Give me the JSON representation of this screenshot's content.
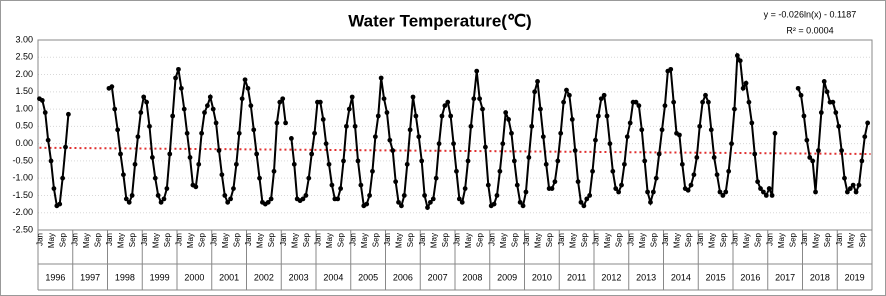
{
  "chart_data": {
    "type": "line",
    "title": "Water Temperature(℃)",
    "annotations": [
      "y = -0.026ln(x) - 0.1187",
      "R² = 0.0004"
    ],
    "categories": [
      "Jan",
      null,
      null,
      null,
      "May",
      null,
      null,
      null,
      "Sep",
      null,
      null,
      null,
      "Jan",
      null,
      null,
      null,
      "May",
      null,
      null,
      null,
      "Sep",
      null,
      null,
      null,
      "Jan",
      null,
      null,
      null,
      "May",
      null,
      null,
      null,
      "Sep",
      null,
      null,
      null,
      "Jan",
      null,
      null,
      null,
      "May",
      null,
      null,
      null,
      "Sep",
      null,
      null,
      null,
      "Jan",
      null,
      null,
      null,
      "May",
      null,
      null,
      null,
      "Sep",
      null,
      null,
      null,
      "Jan",
      null,
      null,
      null,
      "May",
      null,
      null,
      null,
      "Sep",
      null,
      null,
      null,
      "Jan",
      null,
      null,
      null,
      "May",
      null,
      null,
      null,
      "Sep",
      null,
      null,
      null,
      "Jan",
      null,
      null,
      null,
      "May",
      null,
      null,
      null,
      "Sep",
      null,
      null,
      null,
      "Jan",
      null,
      null,
      null,
      "May",
      null,
      null,
      null,
      "Sep",
      null,
      null,
      null,
      "Jan",
      null,
      null,
      null,
      "May",
      null,
      null,
      null,
      "Sep",
      null,
      null,
      null,
      "Jan",
      null,
      null,
      null,
      "May",
      null,
      null,
      null,
      "Sep",
      null,
      null,
      null,
      "Jan",
      null,
      null,
      null,
      "May",
      null,
      null,
      null,
      "Sep",
      null,
      null,
      null,
      "Jan",
      null,
      null,
      null,
      "May",
      null,
      null,
      null,
      "Sep",
      null,
      null,
      null,
      "Jan",
      null,
      null,
      null,
      "May",
      null,
      null,
      null,
      "Sep",
      null,
      null,
      null,
      "Jan",
      null,
      null,
      null,
      "May",
      null,
      null,
      null,
      "Sep",
      null,
      null,
      null,
      "Jan",
      null,
      null,
      null,
      "May",
      null,
      null,
      null,
      "Sep",
      null,
      null,
      null,
      "Jan",
      null,
      null,
      null,
      "May",
      null,
      null,
      null,
      "Sep",
      null,
      null,
      null,
      "Jan",
      null,
      null,
      null,
      "May",
      null,
      null,
      null,
      "Sep",
      null,
      null,
      null,
      "Jan",
      null,
      null,
      null,
      "May",
      null,
      null,
      null,
      "Sep",
      null,
      null,
      null,
      "Jan",
      null,
      null,
      null,
      "May",
      null,
      null,
      null,
      "Sep",
      null,
      null,
      null,
      "Jan",
      null,
      null,
      null,
      "May",
      null,
      null,
      null,
      "Sep",
      null,
      null,
      null,
      "Jan",
      null,
      null,
      null,
      "May",
      null,
      null,
      null,
      "Sep",
      null,
      null,
      null,
      "Jan",
      null,
      null,
      null,
      "May",
      null,
      null,
      null,
      "Sep",
      null,
      null,
      null,
      "Jan",
      null,
      null,
      null,
      "May",
      null,
      null,
      null,
      "Sep",
      null,
      null,
      null
    ],
    "years": [
      "1996",
      "1997",
      "1998",
      "1999",
      "2000",
      "2001",
      "2002",
      "2003",
      "2004",
      "2005",
      "2006",
      "2007",
      "2008",
      "2009",
      "2010",
      "2011",
      "2012",
      "2013",
      "2014",
      "2015",
      "2016",
      "2017",
      "2018",
      "2019"
    ],
    "series": [
      {
        "color": "#000000",
        "values": [
          1.3,
          1.25,
          0.9,
          0.1,
          -0.5,
          -1.3,
          -1.8,
          -1.75,
          -1.0,
          -0.1,
          0.85,
          null,
          null,
          null,
          null,
          null,
          null,
          null,
          null,
          null,
          null,
          null,
          null,
          null,
          1.6,
          1.65,
          1.0,
          0.4,
          -0.3,
          -0.9,
          -1.6,
          -1.7,
          -1.5,
          -0.6,
          0.2,
          0.9,
          1.35,
          1.2,
          0.5,
          -0.4,
          -1.0,
          -1.5,
          -1.7,
          -1.6,
          -1.3,
          -0.3,
          0.8,
          1.9,
          2.15,
          1.6,
          1.0,
          0.3,
          -0.4,
          -1.2,
          -1.25,
          -0.6,
          0.3,
          0.9,
          1.1,
          1.35,
          1.0,
          0.6,
          -0.2,
          -0.9,
          -1.5,
          -1.7,
          -1.6,
          -1.3,
          -0.6,
          0.3,
          1.3,
          1.85,
          1.6,
          1.1,
          0.4,
          -0.3,
          -1.0,
          -1.7,
          -1.75,
          -1.7,
          -1.6,
          -0.8,
          0.6,
          1.2,
          1.3,
          0.6,
          null,
          0.15,
          -0.6,
          -1.6,
          -1.65,
          -1.6,
          -1.5,
          -1.0,
          -0.3,
          0.3,
          1.2,
          1.2,
          0.7,
          0.0,
          -0.6,
          -1.2,
          -1.6,
          -1.6,
          -1.3,
          -0.5,
          0.5,
          1.0,
          1.35,
          0.5,
          -0.5,
          -1.2,
          -1.8,
          -1.75,
          -1.5,
          -0.8,
          0.2,
          0.8,
          1.9,
          1.3,
          0.9,
          0.1,
          -0.2,
          -1.1,
          -1.7,
          -1.8,
          -1.5,
          -0.6,
          0.4,
          1.35,
          0.8,
          0.2,
          -0.5,
          -1.5,
          -1.85,
          -1.7,
          -1.6,
          -1.0,
          0.0,
          0.8,
          1.1,
          1.2,
          0.8,
          0.0,
          -0.8,
          -1.6,
          -1.7,
          -1.3,
          -0.5,
          0.5,
          1.3,
          2.1,
          1.3,
          1.0,
          -0.1,
          -1.2,
          -1.8,
          -1.75,
          -1.5,
          -0.8,
          0.0,
          0.9,
          0.7,
          0.3,
          -0.5,
          -1.2,
          -1.7,
          -1.8,
          -1.4,
          -0.4,
          0.5,
          1.5,
          1.8,
          1.0,
          0.2,
          -0.6,
          -1.3,
          -1.3,
          -1.1,
          -0.5,
          0.3,
          1.2,
          1.55,
          1.4,
          0.7,
          -0.2,
          -1.1,
          -1.7,
          -1.8,
          -1.6,
          -1.5,
          -0.8,
          0.1,
          0.8,
          1.3,
          1.4,
          0.8,
          0.0,
          -0.8,
          -1.3,
          -1.4,
          -1.2,
          -0.6,
          0.2,
          0.6,
          1.2,
          1.2,
          1.1,
          0.4,
          -0.5,
          -1.4,
          -1.7,
          -1.4,
          -1.0,
          -0.3,
          0.4,
          1.1,
          2.1,
          2.15,
          1.2,
          0.3,
          0.25,
          -0.6,
          -1.3,
          -1.35,
          -1.2,
          -0.9,
          -0.4,
          0.5,
          1.2,
          1.4,
          1.2,
          0.4,
          -0.4,
          -0.9,
          -1.4,
          -1.5,
          -1.4,
          -0.8,
          0.0,
          1.0,
          2.55,
          2.4,
          1.6,
          1.75,
          1.2,
          0.6,
          -0.3,
          -1.1,
          -1.3,
          -1.4,
          -1.5,
          -1.3,
          -1.5,
          0.3,
          null,
          null,
          null,
          null,
          null,
          null,
          null,
          1.6,
          1.4,
          0.8,
          0.1,
          -0.4,
          -0.5,
          -1.4,
          -0.2,
          0.9,
          1.8,
          1.5,
          1.2,
          1.2,
          0.9,
          0.5,
          -0.2,
          -1.0,
          -1.4,
          -1.3,
          -1.2,
          -1.4,
          -1.2,
          -0.5,
          0.2,
          0.6,
          null
        ]
      }
    ],
    "trendline": {
      "color": "#e03030",
      "start": -0.12,
      "end": -0.3
    },
    "ylim": [
      -2.5,
      3
    ],
    "yticks": [
      {
        "value": -2.5,
        "label": "-2.50"
      },
      {
        "value": -2,
        "label": "-2.00"
      },
      {
        "value": -1.5,
        "label": "-1.50"
      },
      {
        "value": -1,
        "label": "-1.00"
      },
      {
        "value": -0.5,
        "label": "-0.50"
      },
      {
        "value": 0,
        "label": "0.00"
      },
      {
        "value": 0.5,
        "label": "0.50"
      },
      {
        "value": 1,
        "label": "1.00"
      },
      {
        "value": 1.5,
        "label": "1.50"
      },
      {
        "value": 2,
        "label": "2.00"
      },
      {
        "value": 2.5,
        "label": "2.50"
      },
      {
        "value": 3,
        "label": "3.00"
      }
    ],
    "grid": true
  }
}
